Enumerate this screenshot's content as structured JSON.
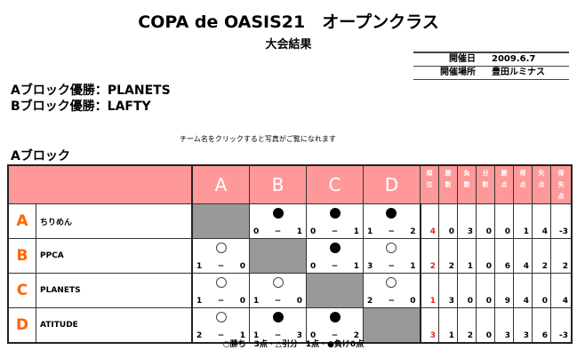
{
  "title": "COPA de OASIS21　オープンクラス",
  "subtitle": "大会結果",
  "info": [
    {
      "label": "開催日",
      "value": "2009.6.7"
    },
    {
      "label": "開催場所",
      "value": "豊田ルミナス"
    }
  ],
  "winners": [
    "Aブロック優勝：PLANETS",
    "Bブロック優勝：LAFTY"
  ],
  "note": "チーム名をクリックすると写真がご覧になれます",
  "block_title": "Aブロック",
  "columns": [
    "A",
    "B",
    "C",
    "D"
  ],
  "stat_headers": [
    "順位",
    "勝数",
    "負数",
    "分数",
    "勝点",
    "得点",
    "失点",
    "得失点"
  ],
  "teams": [
    {
      "letter": "A",
      "name": "ちりめん",
      "results": [
        null,
        {
          "r": "loss",
          "s": [
            "0",
            "1"
          ]
        },
        {
          "r": "loss",
          "s": [
            "0",
            "1"
          ]
        },
        {
          "r": "loss",
          "s": [
            "1",
            "2"
          ]
        }
      ],
      "stats": [
        "4",
        "0",
        "3",
        "0",
        "0",
        "1",
        "4",
        "-3"
      ]
    },
    {
      "letter": "B",
      "name": "PPCA",
      "results": [
        {
          "r": "win",
          "s": [
            "1",
            "0"
          ]
        },
        null,
        {
          "r": "loss",
          "s": [
            "0",
            "1"
          ]
        },
        {
          "r": "win",
          "s": [
            "3",
            "1"
          ]
        }
      ],
      "stats": [
        "2",
        "2",
        "1",
        "0",
        "6",
        "4",
        "2",
        "2"
      ]
    },
    {
      "letter": "C",
      "name": "PLANETS",
      "results": [
        {
          "r": "win",
          "s": [
            "1",
            "0"
          ]
        },
        {
          "r": "win",
          "s": [
            "1",
            "0"
          ]
        },
        null,
        {
          "r": "win",
          "s": [
            "2",
            "0"
          ]
        }
      ],
      "stats": [
        "1",
        "3",
        "0",
        "0",
        "9",
        "4",
        "0",
        "4"
      ]
    },
    {
      "letter": "D",
      "name": "ATITUDE",
      "results": [
        {
          "r": "win",
          "s": [
            "2",
            "1"
          ]
        },
        {
          "r": "loss",
          "s": [
            "1",
            "3"
          ]
        },
        {
          "r": "loss",
          "s": [
            "0",
            "2"
          ]
        },
        null
      ],
      "stats": [
        "3",
        "1",
        "2",
        "0",
        "3",
        "3",
        "6",
        "-3"
      ]
    }
  ],
  "legend": "○勝ち　3点・△引分　1点・●負け0点",
  "colors": {
    "header_bg": "#ff9999",
    "letter": "#ff6600",
    "rank": "#ee2222",
    "self_cell": "#999999"
  }
}
